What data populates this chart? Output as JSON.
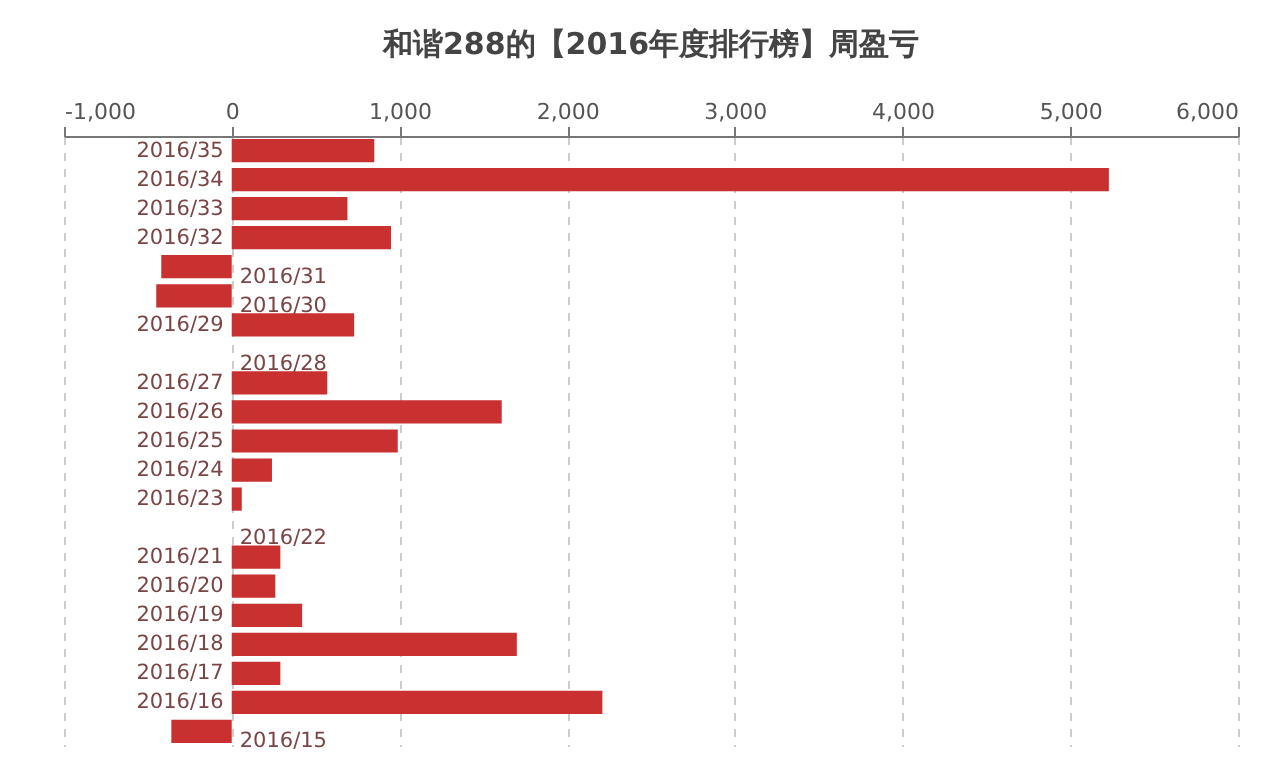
{
  "chart_data": {
    "type": "bar",
    "orientation": "horizontal",
    "title": "和谐288的【2016年度排行榜】周盈亏",
    "categories": [
      "2016/35",
      "2016/34",
      "2016/33",
      "2016/32",
      "2016/31",
      "2016/30",
      "2016/29",
      "2016/28",
      "2016/27",
      "2016/26",
      "2016/25",
      "2016/24",
      "2016/23",
      "2016/22",
      "2016/21",
      "2016/20",
      "2016/19",
      "2016/18",
      "2016/17",
      "2016/16",
      "2016/15"
    ],
    "values": [
      850,
      5230,
      690,
      950,
      -420,
      -450,
      730,
      0,
      570,
      1610,
      990,
      240,
      60,
      0,
      290,
      260,
      420,
      1700,
      290,
      2210,
      -360
    ],
    "color": "#c8312f",
    "xlim": [
      -1000,
      6000
    ],
    "xticks": [
      {
        "value": -1000,
        "label": "-1,000"
      },
      0,
      {
        "value": 1000,
        "label": "1,000"
      },
      {
        "value": 2000,
        "label": "2,000"
      },
      {
        "value": 3000,
        "label": "3,000"
      },
      {
        "value": 4000,
        "label": "4,000"
      },
      {
        "value": 5000,
        "label": "5,000"
      },
      {
        "value": 6000,
        "label": "6,000"
      }
    ],
    "grid": "x"
  }
}
